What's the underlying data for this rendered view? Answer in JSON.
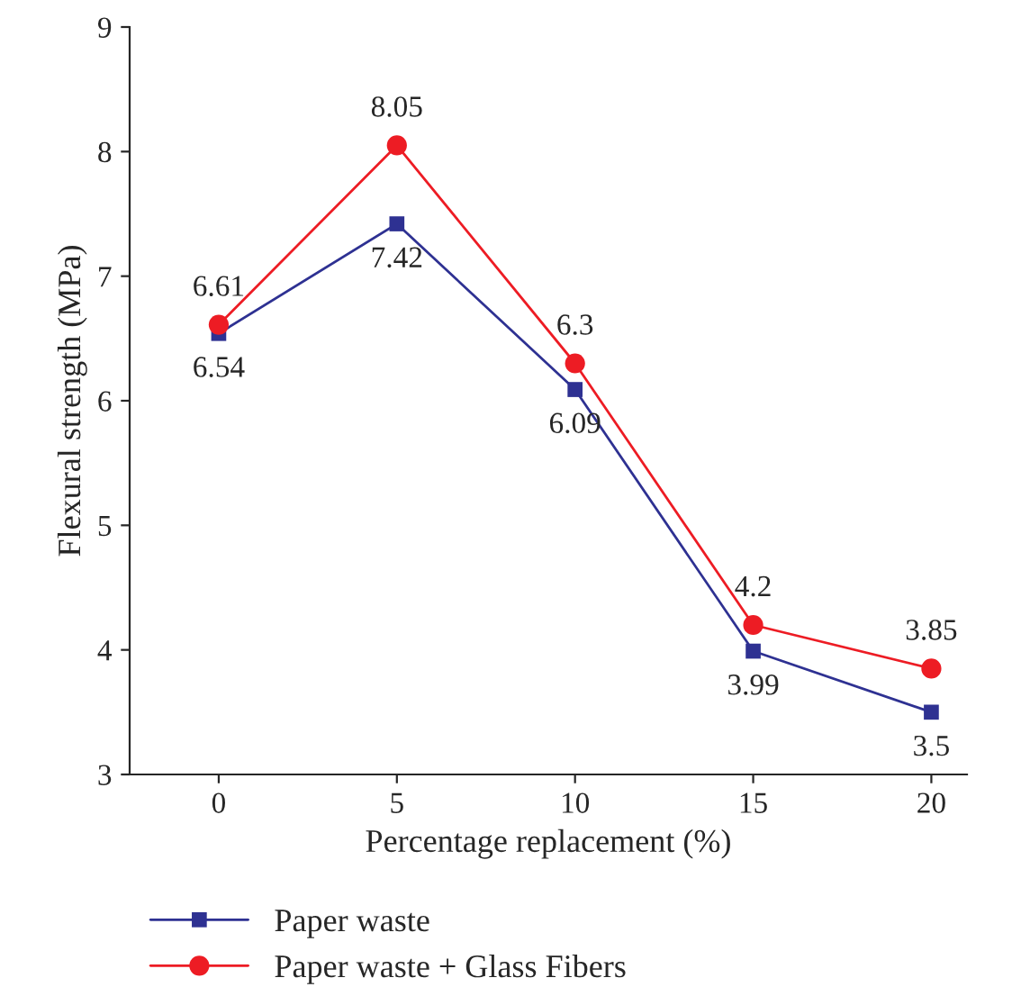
{
  "chart_data": {
    "type": "line",
    "xlabel": "Percentage replacement (%)",
    "ylabel": "Flexural strength (MPa)",
    "x": [
      0,
      5,
      10,
      15,
      20
    ],
    "series": [
      {
        "name": "Paper waste",
        "color": "#2e3192",
        "marker": "square",
        "values": [
          6.54,
          7.42,
          6.09,
          3.99,
          3.5
        ]
      },
      {
        "name": "Paper waste + Glass Fibers",
        "color": "#ed1c24",
        "marker": "circle",
        "values": [
          6.61,
          8.05,
          6.3,
          4.2,
          3.85
        ]
      }
    ],
    "xlim": [
      -2.5,
      21
    ],
    "xticks": [
      0,
      5,
      10,
      15,
      20
    ],
    "ylim": [
      3,
      9
    ],
    "yticks": [
      3,
      4,
      5,
      6,
      7,
      8,
      9
    ],
    "data_labels": true,
    "grid": false,
    "legend": "bottom left",
    "line_style": "solid"
  }
}
